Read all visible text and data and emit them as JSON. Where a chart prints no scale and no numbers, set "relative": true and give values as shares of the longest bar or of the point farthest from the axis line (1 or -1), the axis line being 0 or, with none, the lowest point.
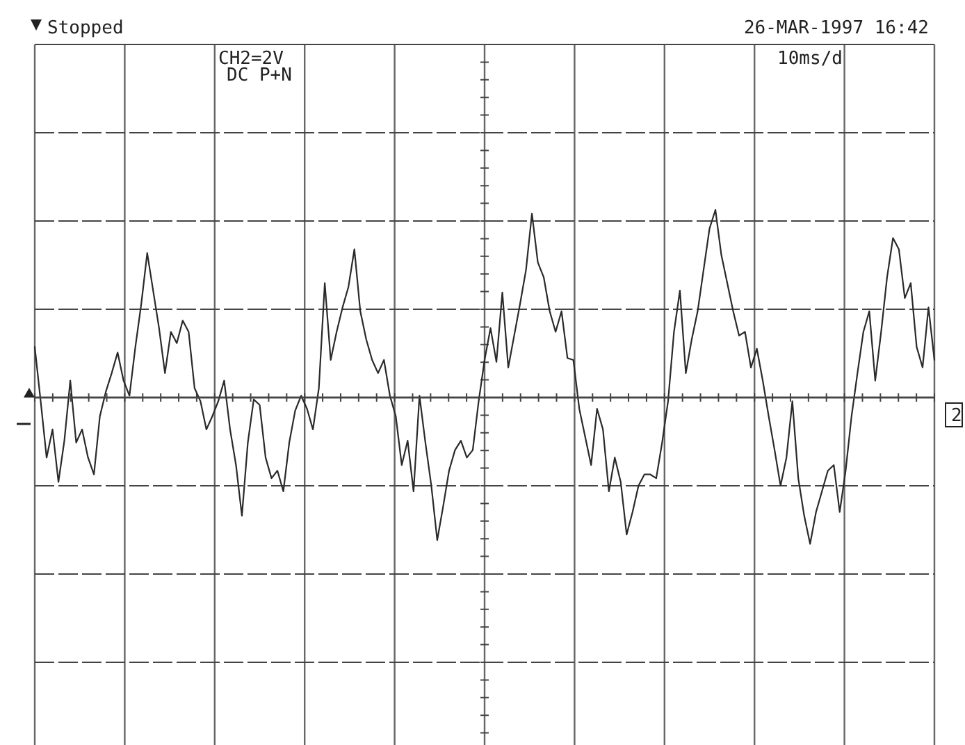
{
  "chart_data": {
    "type": "line",
    "relative": true,
    "grid": true,
    "marker": "none",
    "line_style": "solid",
    "annotations": [
      "Stopped",
      "26-MAR-1997 16:42",
      "CH2=2V",
      "DC P+N",
      "10ms/d",
      "2"
    ],
    "categories": [
      null,
      null,
      null,
      null,
      null,
      null,
      null,
      null,
      null,
      null,
      null,
      null,
      null,
      null,
      null,
      null,
      null,
      null,
      null,
      null,
      null,
      null,
      null,
      null,
      null,
      null,
      null,
      null,
      null,
      null,
      null,
      null,
      null,
      null,
      null,
      null,
      null,
      null,
      null,
      null,
      null,
      null,
      null,
      null,
      null,
      null,
      null,
      null,
      null,
      null,
      null,
      null,
      null,
      null,
      null,
      null,
      null,
      null,
      null,
      null,
      null,
      null,
      null,
      null,
      null,
      null,
      null,
      null,
      null,
      null,
      null,
      null,
      null,
      null,
      null,
      null,
      null,
      null,
      null,
      null,
      null,
      null,
      null,
      null,
      null,
      null,
      null,
      null,
      null,
      null,
      null,
      null,
      null,
      null,
      null,
      null,
      null,
      null,
      null,
      null,
      null,
      null,
      null,
      null,
      null,
      null,
      null,
      null,
      null,
      null,
      null,
      null,
      null,
      null,
      null,
      null,
      null,
      null,
      null,
      null,
      null,
      null,
      null,
      null,
      null,
      null,
      null,
      null,
      null,
      null,
      null,
      null,
      null,
      null,
      null,
      null,
      null,
      null,
      null,
      null,
      null,
      null,
      null,
      null,
      null,
      null,
      null,
      null,
      null,
      null,
      null,
      null,
      null
    ],
    "series": [
      {
        "color": "#2a2a2a",
        "values": [
          0.27,
          -0.02,
          -0.32,
          -0.17,
          -0.45,
          -0.23,
          0.09,
          -0.24,
          -0.17,
          -0.32,
          -0.41,
          -0.1,
          0.03,
          0.13,
          0.24,
          0.09,
          0.01,
          0.27,
          0.5,
          0.77,
          0.57,
          0.37,
          0.13,
          0.35,
          0.29,
          0.41,
          0.35,
          0.05,
          -0.02,
          -0.17,
          -0.1,
          -0.02,
          0.09,
          -0.17,
          -0.36,
          -0.63,
          -0.24,
          -0.01,
          -0.04,
          -0.32,
          -0.43,
          -0.39,
          -0.5,
          -0.24,
          -0.07,
          0.01,
          -0.06,
          -0.17,
          0.05,
          0.61,
          0.2,
          0.35,
          0.48,
          0.59,
          0.79,
          0.46,
          0.31,
          0.2,
          0.13,
          0.2,
          0.01,
          -0.1,
          -0.36,
          -0.23,
          -0.5,
          0.01,
          -0.24,
          -0.47,
          -0.76,
          -0.58,
          -0.39,
          -0.28,
          -0.23,
          -0.32,
          -0.28,
          -0.02,
          0.2,
          0.37,
          0.19,
          0.56,
          0.16,
          0.33,
          0.5,
          0.68,
          0.98,
          0.72,
          0.64,
          0.46,
          0.35,
          0.46,
          0.21,
          0.2,
          -0.06,
          -0.21,
          -0.36,
          -0.06,
          -0.17,
          -0.5,
          -0.32,
          -0.45,
          -0.73,
          -0.61,
          -0.47,
          -0.41,
          -0.41,
          -0.43,
          -0.24,
          -0.02,
          0.35,
          0.57,
          0.13,
          0.31,
          0.46,
          0.68,
          0.9,
          1,
          0.76,
          0.61,
          0.46,
          0.33,
          0.35,
          0.16,
          0.26,
          0.09,
          -0.1,
          -0.28,
          -0.47,
          -0.32,
          -0.02,
          -0.43,
          -0.63,
          -0.78,
          -0.61,
          -0.5,
          -0.39,
          -0.36,
          -0.61,
          -0.39,
          -0.1,
          0.13,
          0.35,
          0.46,
          0.09,
          0.35,
          0.64,
          0.85,
          0.79,
          0.53,
          0.61,
          0.27,
          0.16,
          0.48,
          0.2
        ]
      }
    ]
  }
}
